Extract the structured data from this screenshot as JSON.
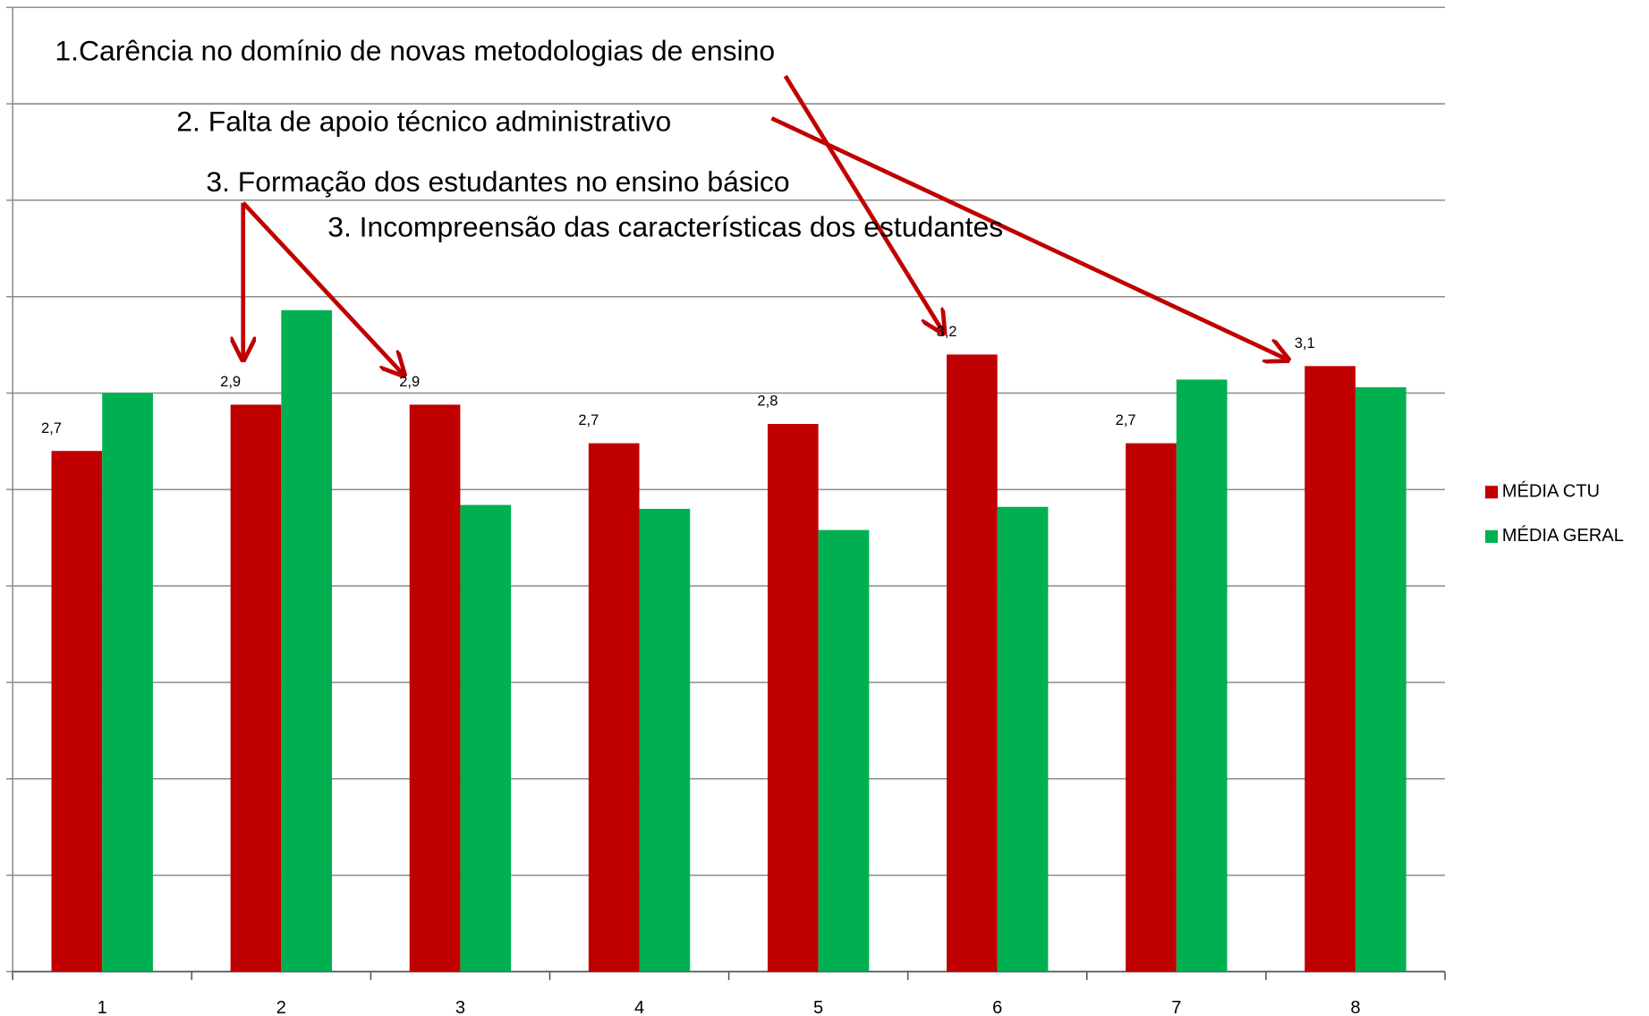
{
  "chart_data": {
    "type": "bar",
    "categories": [
      "1",
      "2",
      "3",
      "4",
      "5",
      "6",
      "7",
      "8"
    ],
    "series": [
      {
        "name": "MÉDIA CTU",
        "color": "#c00000",
        "values": [
          2.7,
          2.94,
          2.94,
          2.74,
          2.84,
          3.2,
          2.74,
          3.14
        ],
        "value_labels": [
          "2,7",
          "2,9",
          "2,9",
          "2,7",
          "2,8",
          "3,2",
          "2,7",
          "3,1"
        ]
      },
      {
        "name": "MÉDIA GERAL",
        "color": "#00b050",
        "values": [
          3.0,
          3.43,
          2.42,
          2.4,
          2.29,
          2.41,
          3.07,
          3.03
        ]
      }
    ],
    "ylim": [
      0,
      5
    ],
    "yticks": [
      0,
      0.5,
      1,
      1.5,
      2,
      2.5,
      3,
      3.5,
      4,
      4.5,
      5
    ],
    "grid": true,
    "legend": "right",
    "annotations": [
      "1.Carência no domínio de novas metodologias de ensino",
      "2. Falta de apoio técnico administrativo",
      "3. Formação dos estudantes no ensino básico",
      "3. Incompreensão das características dos estudantes"
    ]
  }
}
